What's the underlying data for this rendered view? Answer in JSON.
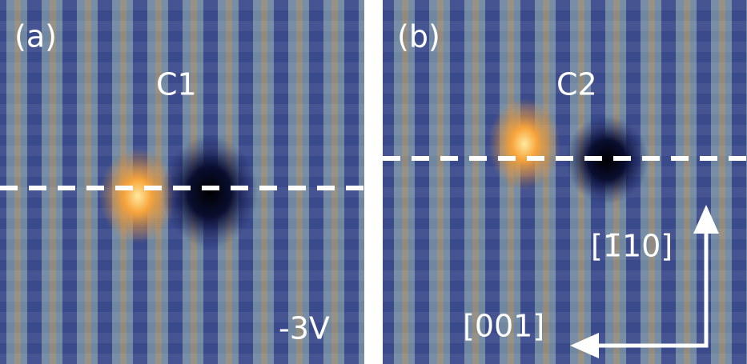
{
  "panels": [
    {
      "label": "(a)",
      "name": "C1",
      "bias": "-3V"
    },
    {
      "label": "(b)",
      "name": "C2",
      "direction_vertical": "[1̄10]",
      "direction_horizontal": "[001]"
    }
  ]
}
